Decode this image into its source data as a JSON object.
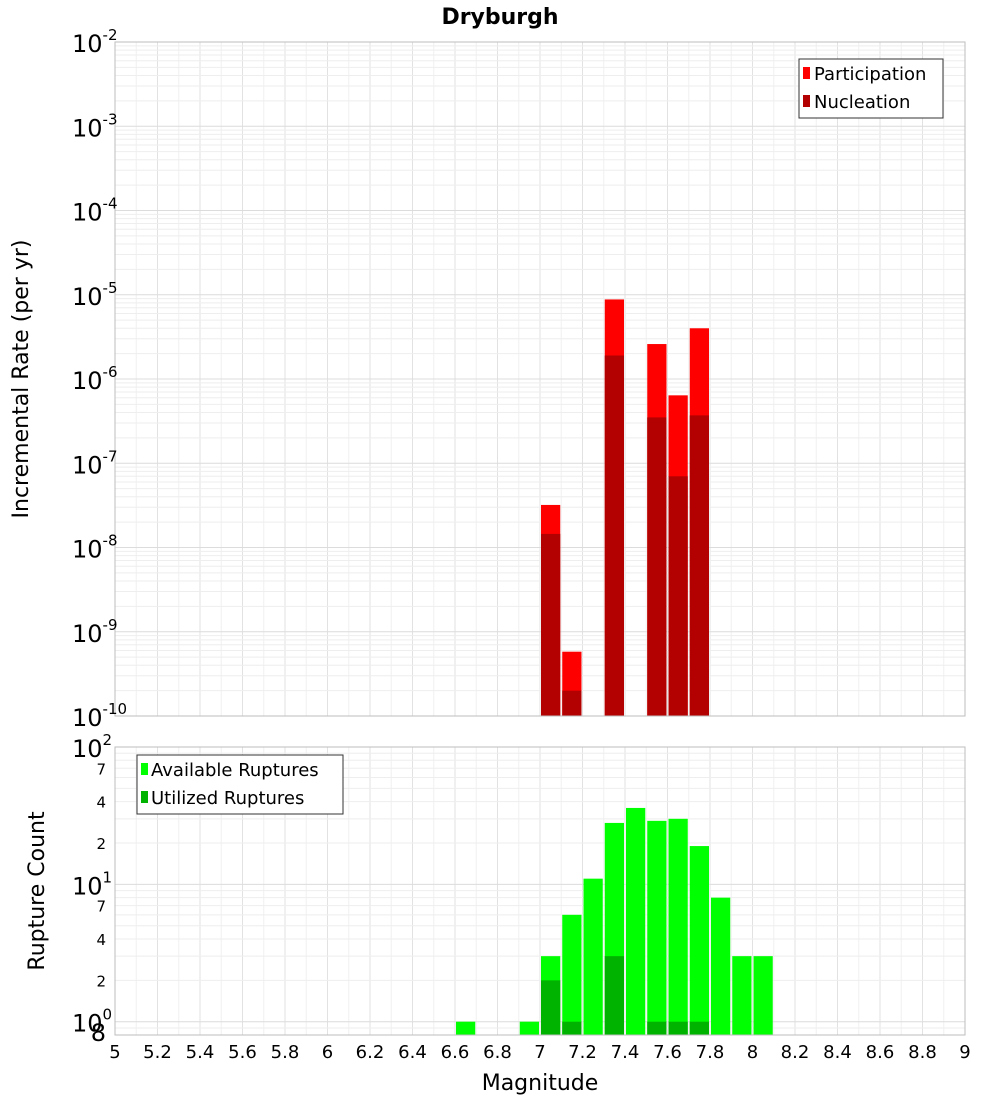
{
  "chart_data": [
    {
      "type": "bar",
      "title": "Dryburgh",
      "xlabel": "Magnitude",
      "ylabel": "Incremental Rate (per yr)",
      "yscale": "log",
      "xlim": [
        5,
        9
      ],
      "ylim": [
        1e-10,
        0.01
      ],
      "bin_width": 0.1,
      "y_tick_labels": [
        {
          "base": "10",
          "exp": "-10"
        },
        {
          "base": "10",
          "exp": "-9"
        },
        {
          "base": "10",
          "exp": "-8"
        },
        {
          "base": "10",
          "exp": "-7"
        },
        {
          "base": "10",
          "exp": "-6"
        },
        {
          "base": "10",
          "exp": "-5"
        },
        {
          "base": "10",
          "exp": "-4"
        },
        {
          "base": "10",
          "exp": "-3"
        },
        {
          "base": "10",
          "exp": "-2"
        }
      ],
      "legend": {
        "position": "top-right",
        "entries": [
          "Participation",
          "Nucleation"
        ]
      },
      "series": [
        {
          "name": "Participation",
          "color": "#ff0000",
          "points": [
            {
              "x": 7.05,
              "y": 3.2e-08
            },
            {
              "x": 7.15,
              "y": 5.8e-10
            },
            {
              "x": 7.35,
              "y": 8.8e-06
            },
            {
              "x": 7.55,
              "y": 2.6e-06
            },
            {
              "x": 7.65,
              "y": 6.4e-07
            },
            {
              "x": 7.75,
              "y": 4e-06
            }
          ]
        },
        {
          "name": "Nucleation",
          "color": "#b30000",
          "points": [
            {
              "x": 7.05,
              "y": 1.45e-08
            },
            {
              "x": 7.15,
              "y": 2e-10
            },
            {
              "x": 7.35,
              "y": 1.9e-06
            },
            {
              "x": 7.55,
              "y": 3.5e-07
            },
            {
              "x": 7.65,
              "y": 7e-08
            },
            {
              "x": 7.75,
              "y": 3.7e-07
            }
          ]
        }
      ]
    },
    {
      "type": "bar",
      "xlabel": "Magnitude",
      "ylabel": "Rupture Count",
      "yscale": "log",
      "xlim": [
        5,
        9
      ],
      "ylim": [
        0.8,
        100
      ],
      "bin_width": 0.1,
      "x_tick_labels": [
        "5",
        "5.2",
        "5.4",
        "5.6",
        "5.8",
        "6",
        "6.2",
        "6.4",
        "6.6",
        "6.8",
        "7",
        "7.2",
        "7.4",
        "7.6",
        "7.8",
        "8",
        "8.2",
        "8.4",
        "8.6",
        "8.8",
        "9"
      ],
      "y_major_tick_labels": [
        {
          "value": 1,
          "base": "10",
          "exp": "0"
        },
        {
          "value": 10,
          "base": "10",
          "exp": "1"
        },
        {
          "value": 100,
          "base": "10",
          "exp": "2"
        }
      ],
      "y_minor_tick_labels": [
        {
          "value": 0.8,
          "label": "8"
        },
        {
          "value": 2,
          "label": "2"
        },
        {
          "value": 4,
          "label": "4"
        },
        {
          "value": 7,
          "label": "7"
        },
        {
          "value": 20,
          "label": "2"
        },
        {
          "value": 40,
          "label": "4"
        },
        {
          "value": 70,
          "label": "7"
        }
      ],
      "legend": {
        "position": "top-left",
        "entries": [
          "Available Ruptures",
          "Utilized Ruptures"
        ]
      },
      "series": [
        {
          "name": "Available Ruptures",
          "color": "#00ff00",
          "points": [
            {
              "x": 6.65,
              "y": 1
            },
            {
              "x": 6.95,
              "y": 1
            },
            {
              "x": 7.05,
              "y": 3
            },
            {
              "x": 7.15,
              "y": 6
            },
            {
              "x": 7.25,
              "y": 11
            },
            {
              "x": 7.35,
              "y": 28
            },
            {
              "x": 7.45,
              "y": 36
            },
            {
              "x": 7.55,
              "y": 29
            },
            {
              "x": 7.65,
              "y": 30
            },
            {
              "x": 7.75,
              "y": 19
            },
            {
              "x": 7.85,
              "y": 8
            },
            {
              "x": 7.95,
              "y": 3
            },
            {
              "x": 8.05,
              "y": 3
            }
          ]
        },
        {
          "name": "Utilized Ruptures",
          "color": "#00b300",
          "points": [
            {
              "x": 7.05,
              "y": 2
            },
            {
              "x": 7.15,
              "y": 1
            },
            {
              "x": 7.35,
              "y": 3
            },
            {
              "x": 7.55,
              "y": 1
            },
            {
              "x": 7.65,
              "y": 1
            },
            {
              "x": 7.75,
              "y": 1
            }
          ]
        }
      ]
    }
  ]
}
